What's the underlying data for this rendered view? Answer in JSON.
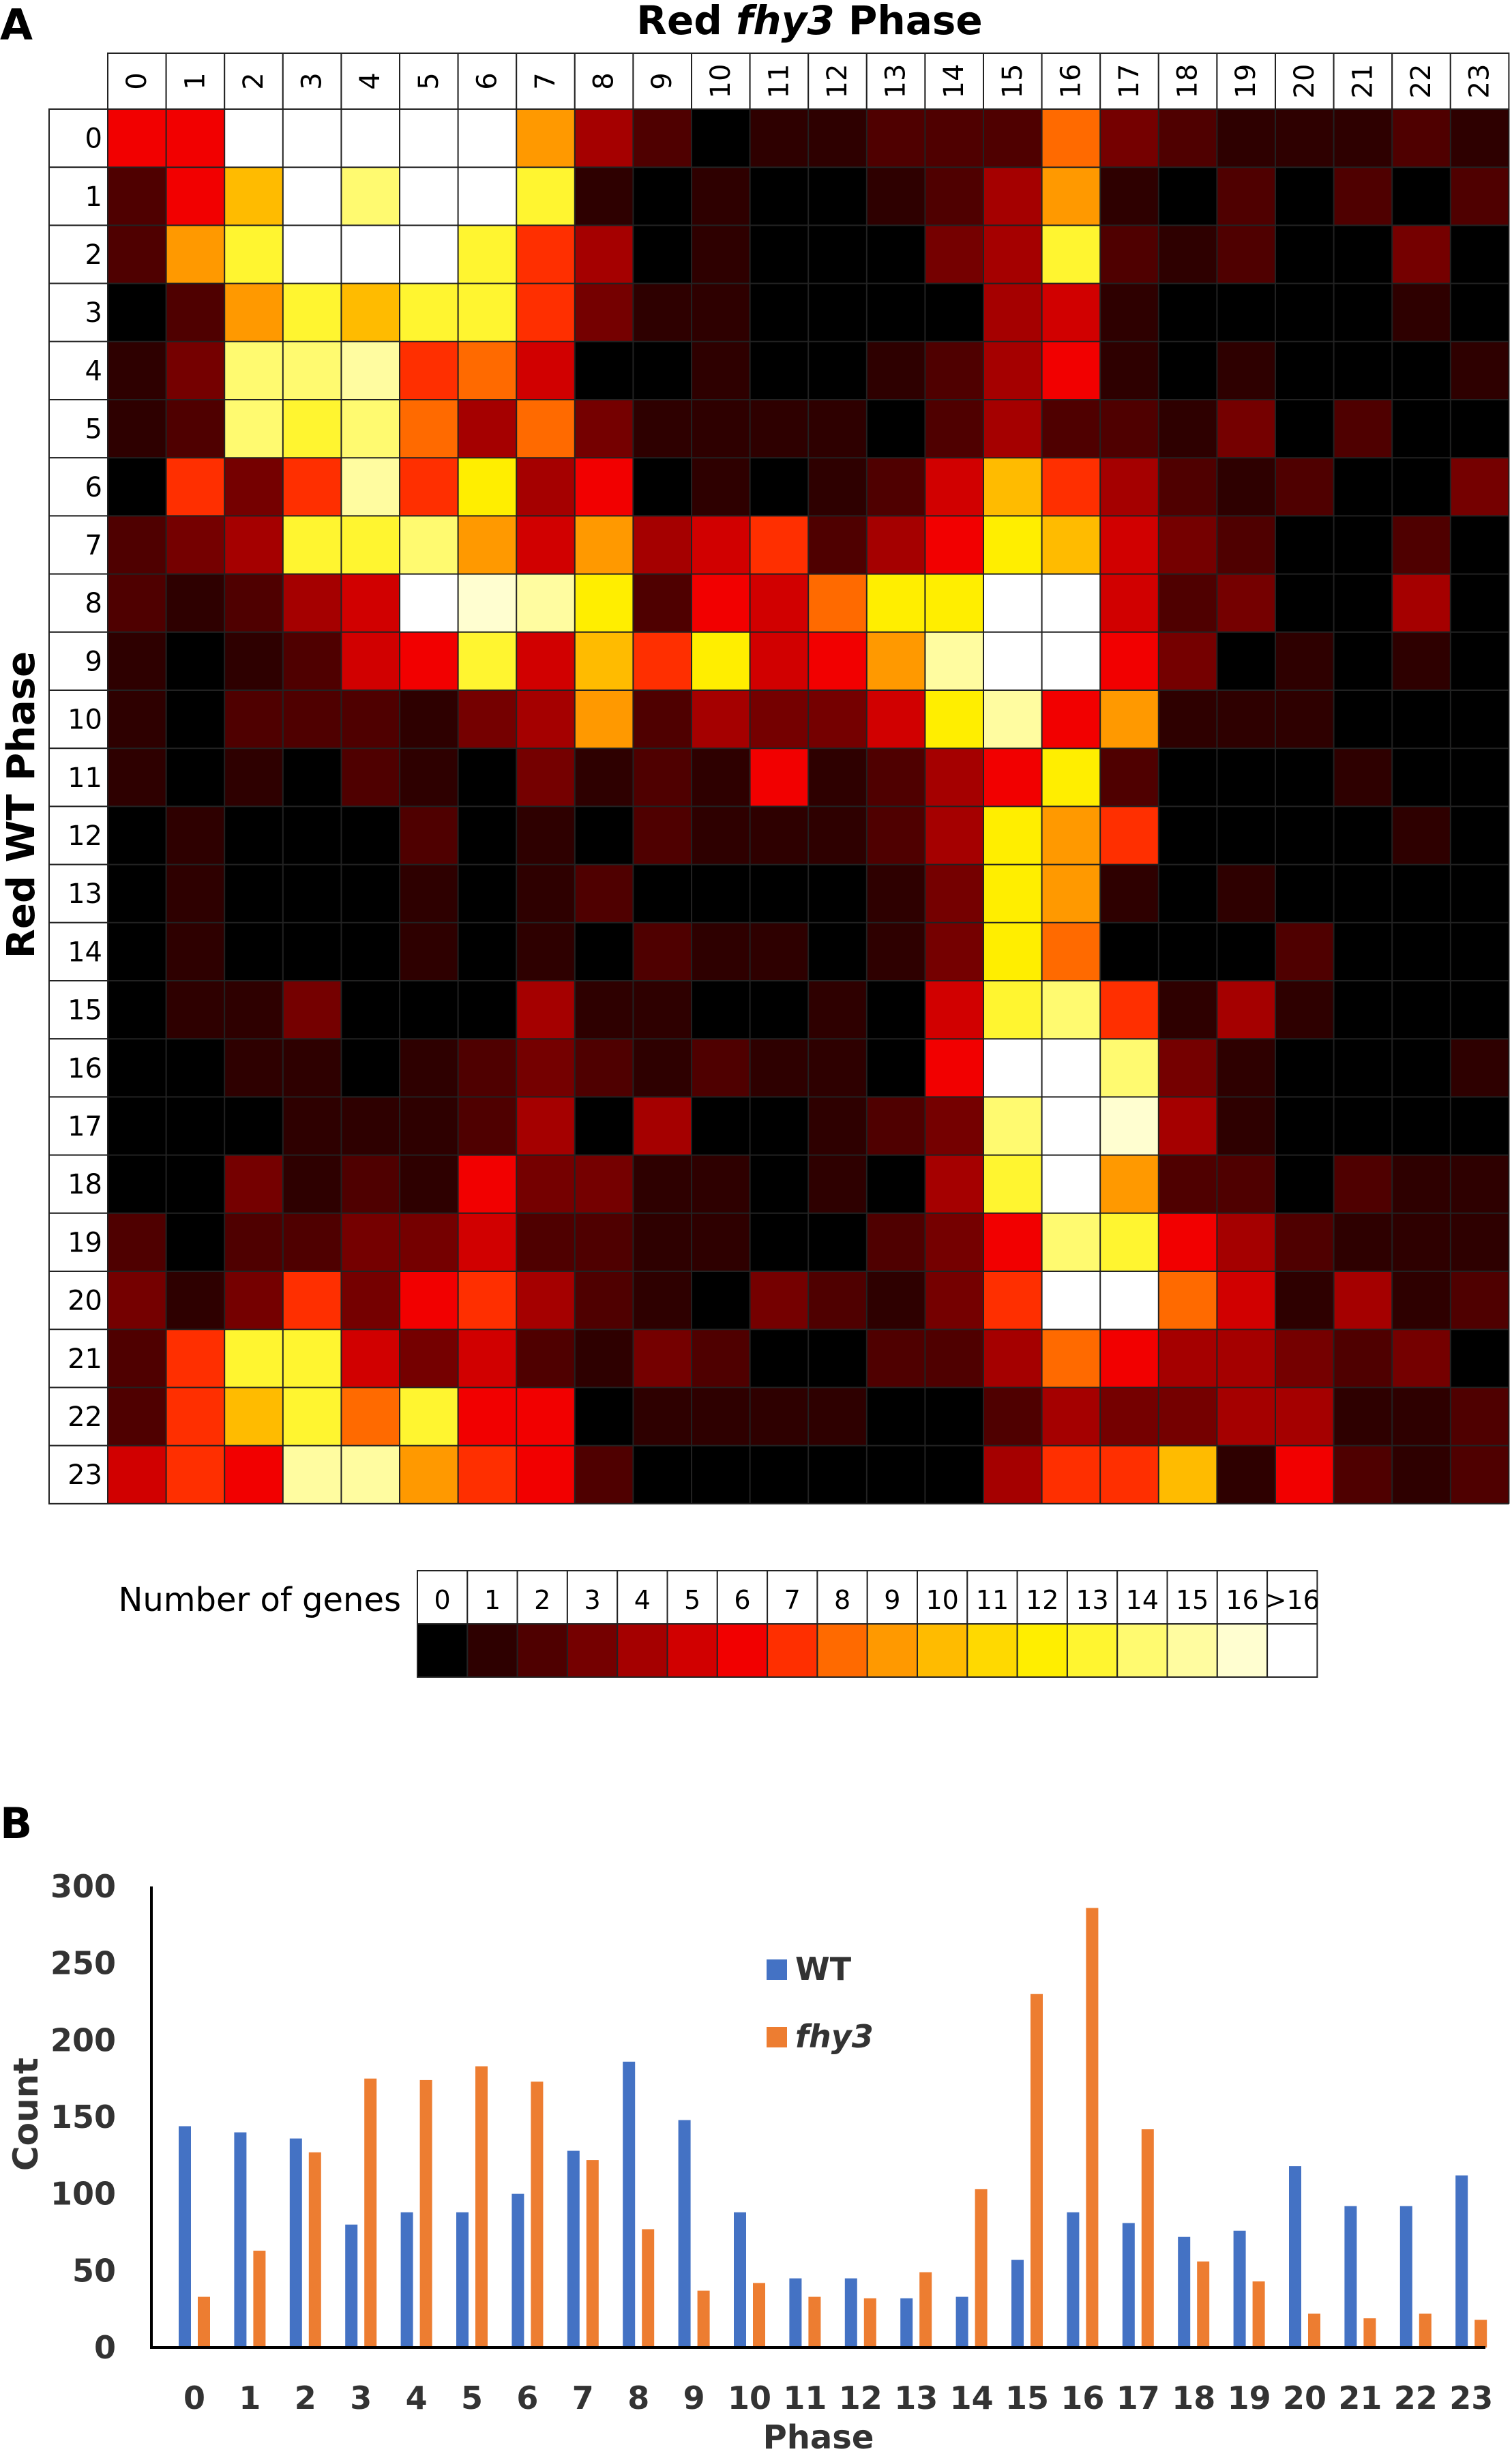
{
  "panel_a": {
    "label": "A",
    "title_prefix": "Red ",
    "title_italic": "fhy3",
    "title_suffix": " Phase",
    "ylabel": "Red WT Phase",
    "legend_label": "Number of genes",
    "legend_bins": [
      "0",
      "1",
      "2",
      "3",
      "4",
      "5",
      "6",
      "7",
      "8",
      "9",
      "10",
      "11",
      "12",
      "13",
      "14",
      "15",
      "16",
      ">16"
    ],
    "legend_colors": [
      "#000000",
      "#2e0000",
      "#4f0000",
      "#750000",
      "#a50000",
      "#d10000",
      "#f20000",
      "#ff2f00",
      "#ff6a00",
      "#ff9900",
      "#ffbb00",
      "#ffd900",
      "#ffee00",
      "#fff530",
      "#fffa70",
      "#fffca0",
      "#fffed0",
      "#ffffff"
    ],
    "chart_data": {
      "type": "heatmap",
      "title": "Red fhy3 Phase",
      "ylabel": "Red WT Phase",
      "x": [
        "0",
        "1",
        "2",
        "3",
        "4",
        "5",
        "6",
        "7",
        "8",
        "9",
        "10",
        "11",
        "12",
        "13",
        "14",
        "15",
        "16",
        "17",
        "18",
        "19",
        "20",
        "21",
        "22",
        "23"
      ],
      "y": [
        "0",
        "1",
        "2",
        "3",
        "4",
        "5",
        "6",
        "7",
        "8",
        "9",
        "10",
        "11",
        "12",
        "13",
        "14",
        "15",
        "16",
        "17",
        "18",
        "19",
        "20",
        "21",
        "22",
        "23"
      ],
      "values": [
        [
          6,
          6,
          17,
          17,
          17,
          17,
          17,
          9,
          4,
          2,
          0,
          1,
          1,
          2,
          2,
          2,
          8,
          3,
          2,
          1,
          1,
          1,
          2,
          1
        ],
        [
          2,
          6,
          10,
          17,
          14,
          17,
          17,
          13,
          1,
          0,
          1,
          0,
          0,
          1,
          2,
          4,
          9,
          1,
          0,
          2,
          0,
          2,
          0,
          2
        ],
        [
          2,
          9,
          13,
          17,
          17,
          17,
          13,
          7,
          4,
          0,
          1,
          0,
          0,
          0,
          3,
          4,
          13,
          2,
          1,
          2,
          0,
          0,
          3,
          0
        ],
        [
          0,
          2,
          9,
          13,
          10,
          13,
          13,
          7,
          3,
          1,
          1,
          0,
          0,
          0,
          0,
          4,
          5,
          1,
          0,
          0,
          0,
          0,
          1,
          0
        ],
        [
          1,
          3,
          14,
          14,
          15,
          7,
          8,
          5,
          0,
          0,
          1,
          0,
          0,
          1,
          2,
          4,
          6,
          1,
          0,
          1,
          0,
          0,
          0,
          1
        ],
        [
          1,
          2,
          14,
          13,
          14,
          8,
          4,
          8,
          3,
          1,
          1,
          1,
          1,
          0,
          2,
          4,
          2,
          2,
          1,
          3,
          0,
          2,
          0,
          0
        ],
        [
          0,
          7,
          3,
          7,
          15,
          7,
          12,
          4,
          6,
          0,
          1,
          0,
          1,
          2,
          5,
          10,
          7,
          4,
          2,
          1,
          2,
          0,
          0,
          3
        ],
        [
          2,
          3,
          4,
          13,
          13,
          14,
          9,
          5,
          9,
          4,
          5,
          7,
          2,
          4,
          6,
          12,
          10,
          5,
          3,
          2,
          0,
          0,
          2,
          0
        ],
        [
          2,
          1,
          2,
          4,
          5,
          17,
          16,
          15,
          12,
          2,
          6,
          5,
          8,
          12,
          12,
          17,
          17,
          5,
          2,
          3,
          0,
          0,
          4,
          0
        ],
        [
          1,
          0,
          1,
          2,
          5,
          6,
          13,
          5,
          10,
          7,
          12,
          5,
          6,
          9,
          15,
          17,
          17,
          6,
          3,
          0,
          1,
          0,
          1,
          0
        ],
        [
          1,
          0,
          2,
          2,
          2,
          1,
          3,
          4,
          9,
          2,
          4,
          3,
          3,
          5,
          12,
          15,
          6,
          9,
          1,
          1,
          1,
          0,
          0,
          0
        ],
        [
          1,
          0,
          1,
          0,
          2,
          1,
          0,
          3,
          1,
          2,
          1,
          6,
          1,
          2,
          4,
          6,
          12,
          2,
          0,
          0,
          0,
          1,
          0,
          0
        ],
        [
          0,
          1,
          0,
          0,
          0,
          2,
          0,
          1,
          0,
          2,
          1,
          1,
          1,
          2,
          4,
          12,
          9,
          7,
          0,
          0,
          0,
          0,
          1,
          0
        ],
        [
          0,
          1,
          0,
          0,
          0,
          1,
          0,
          1,
          2,
          0,
          0,
          0,
          0,
          1,
          3,
          12,
          9,
          1,
          0,
          1,
          0,
          0,
          0,
          0
        ],
        [
          0,
          1,
          0,
          0,
          0,
          1,
          0,
          1,
          0,
          2,
          1,
          1,
          0,
          1,
          3,
          12,
          8,
          0,
          0,
          0,
          2,
          0,
          0,
          0
        ],
        [
          0,
          1,
          1,
          3,
          0,
          0,
          0,
          4,
          1,
          1,
          0,
          0,
          1,
          0,
          5,
          13,
          14,
          7,
          1,
          4,
          1,
          0,
          0,
          0
        ],
        [
          0,
          0,
          1,
          1,
          0,
          1,
          2,
          3,
          2,
          1,
          2,
          1,
          1,
          0,
          6,
          17,
          17,
          14,
          3,
          1,
          0,
          0,
          0,
          1
        ],
        [
          0,
          0,
          0,
          1,
          1,
          1,
          2,
          4,
          0,
          4,
          0,
          0,
          1,
          2,
          3,
          14,
          17,
          16,
          4,
          1,
          0,
          0,
          0,
          0
        ],
        [
          0,
          0,
          3,
          1,
          2,
          1,
          6,
          3,
          3,
          1,
          1,
          0,
          1,
          0,
          4,
          13,
          17,
          9,
          2,
          2,
          0,
          2,
          1,
          1
        ],
        [
          2,
          0,
          2,
          2,
          3,
          3,
          5,
          2,
          2,
          1,
          1,
          0,
          0,
          2,
          3,
          6,
          14,
          13,
          6,
          4,
          2,
          1,
          1,
          1
        ],
        [
          3,
          1,
          3,
          7,
          3,
          6,
          7,
          4,
          2,
          1,
          0,
          3,
          2,
          1,
          3,
          7,
          17,
          17,
          8,
          5,
          1,
          4,
          1,
          2
        ],
        [
          2,
          7,
          13,
          13,
          5,
          3,
          5,
          2,
          1,
          3,
          2,
          0,
          0,
          2,
          2,
          4,
          8,
          6,
          4,
          4,
          3,
          2,
          3,
          0
        ],
        [
          2,
          7,
          10,
          13,
          8,
          13,
          6,
          6,
          0,
          1,
          1,
          1,
          1,
          0,
          0,
          2,
          4,
          3,
          3,
          4,
          4,
          1,
          1,
          2
        ],
        [
          5,
          7,
          6,
          15,
          15,
          9,
          7,
          6,
          2,
          0,
          0,
          0,
          0,
          0,
          0,
          4,
          7,
          7,
          10,
          1,
          6,
          2,
          1,
          2
        ]
      ]
    }
  },
  "panel_b": {
    "label": "B",
    "legend": {
      "wt": "WT",
      "fhy3": "fhy3"
    },
    "colors": {
      "wt": "#4472c4",
      "fhy3": "#ed7d31"
    },
    "chart_data": {
      "type": "bar",
      "categories": [
        "0",
        "1",
        "2",
        "3",
        "4",
        "5",
        "6",
        "7",
        "8",
        "9",
        "10",
        "11",
        "12",
        "13",
        "14",
        "15",
        "16",
        "17",
        "18",
        "19",
        "20",
        "21",
        "22",
        "23"
      ],
      "series": [
        {
          "name": "WT",
          "values": [
            144,
            140,
            136,
            80,
            88,
            88,
            100,
            128,
            186,
            148,
            88,
            45,
            45,
            32,
            33,
            57,
            88,
            81,
            72,
            76,
            118,
            92,
            92,
            112
          ]
        },
        {
          "name": "fhy3",
          "values": [
            33,
            63,
            127,
            175,
            174,
            183,
            173,
            122,
            77,
            37,
            42,
            33,
            32,
            49,
            103,
            230,
            286,
            142,
            56,
            43,
            22,
            19,
            22,
            18
          ]
        }
      ],
      "xlabel": "Phase",
      "ylabel": "Count",
      "yticks": [
        "0",
        "50",
        "100",
        "150",
        "200",
        "250",
        "300"
      ],
      "ylim": [
        0,
        300
      ]
    }
  }
}
